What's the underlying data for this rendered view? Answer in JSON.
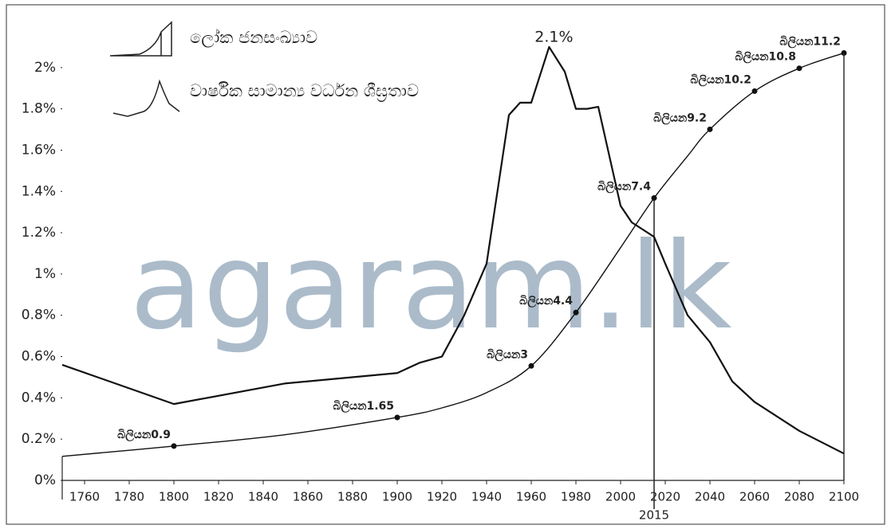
{
  "chart_data": {
    "type": "line",
    "watermark": "agaram.lk",
    "xlim": [
      1750,
      2100
    ],
    "xticks": [
      1760,
      1780,
      1800,
      1820,
      1840,
      1860,
      1880,
      1900,
      1920,
      1940,
      1960,
      1980,
      2000,
      2020,
      2040,
      2060,
      2080,
      2100
    ],
    "ylim": [
      0,
      2.2
    ],
    "yticks": [
      {
        "value": 0,
        "label": "0%"
      },
      {
        "value": 0.2,
        "label": "0.2%"
      },
      {
        "value": 0.4,
        "label": "0.4%"
      },
      {
        "value": 0.6,
        "label": "0.6%"
      },
      {
        "value": 0.8,
        "label": "0.8%"
      },
      {
        "value": 1,
        "label": "1%"
      },
      {
        "value": 1.2,
        "label": "1.2%"
      },
      {
        "value": 1.4,
        "label": "1.4%"
      },
      {
        "value": 1.6,
        "label": "1.6%"
      },
      {
        "value": 1.8,
        "label": "1.8%"
      },
      {
        "value": 2,
        "label": "2%"
      }
    ],
    "y2lim": [
      0,
      11.9
    ],
    "reference_x": 2015,
    "series": [
      {
        "name": "වාර්ෂික සාමාන්‍ය වර්ධන ශීඝ්‍රතාව",
        "color": "#111111",
        "x": [
          1750,
          1800,
          1850,
          1900,
          1910,
          1920,
          1930,
          1940,
          1950,
          1955,
          1960,
          1968,
          1975,
          1980,
          1985,
          1990,
          2000,
          2005,
          2015,
          2020,
          2030,
          2040,
          2050,
          2060,
          2080,
          2100
        ],
        "values": [
          0.56,
          0.37,
          0.47,
          0.52,
          0.57,
          0.6,
          0.8,
          1.05,
          1.77,
          1.83,
          1.83,
          2.1,
          1.98,
          1.8,
          1.8,
          1.81,
          1.33,
          1.25,
          1.18,
          1.05,
          0.8,
          0.67,
          0.48,
          0.38,
          0.24,
          0.13
        ],
        "value_labels": [
          null,
          null,
          null,
          null,
          null,
          null,
          null,
          null,
          null,
          null,
          null,
          "2.1%",
          null,
          null,
          null,
          null,
          null,
          null,
          null,
          null,
          null,
          null,
          null,
          null,
          null,
          null
        ]
      },
      {
        "name": "ලෝක ජනසංඛ්‍යාව",
        "color": "#111111",
        "axis": "y2",
        "x": [
          1750,
          1800,
          1850,
          1900,
          1920,
          1940,
          1960,
          1980,
          2000,
          2015,
          2030,
          2040,
          2060,
          2080,
          2100
        ],
        "values": [
          0.63,
          0.9,
          1.2,
          1.65,
          1.9,
          2.3,
          3,
          4.4,
          6.1,
          7.4,
          8.5,
          9.2,
          10.2,
          10.8,
          11.2
        ],
        "value_labels": [
          null,
          "බිලියන0.9",
          null,
          "බිලියන1.65",
          null,
          null,
          "බිලියන3",
          "බිලියන4.4",
          null,
          "බිලියන7.4",
          null,
          "බිලියන9.2",
          "බිලියන10.2",
          "බිලියන10.8",
          "බිලියන11.2"
        ]
      }
    ]
  }
}
